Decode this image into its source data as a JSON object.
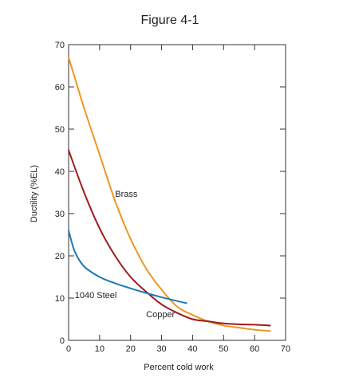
{
  "chart_data": {
    "type": "line",
    "title": "Figure 4-1",
    "xlabel": "Percent cold work",
    "ylabel": "Ductility (%EL)",
    "xlim": [
      0,
      70
    ],
    "ylim": [
      0,
      70
    ],
    "xticks": [
      0,
      10,
      20,
      30,
      40,
      50,
      60,
      70
    ],
    "yticks": [
      0,
      10,
      20,
      30,
      40,
      50,
      60,
      70
    ],
    "grid": false,
    "legend": "none",
    "series": [
      {
        "name": "Brass",
        "color": "#f0961e",
        "label_at": [
          15,
          34
        ],
        "x": [
          0,
          5,
          10,
          15,
          20,
          25,
          30,
          35,
          40,
          45,
          50,
          55,
          60,
          65
        ],
        "y": [
          67,
          55,
          44,
          33,
          24,
          17,
          12,
          8,
          6,
          4.5,
          3.5,
          3,
          2.5,
          2.2
        ]
      },
      {
        "name": "Copper",
        "color": "#a0191c",
        "label_at": [
          25,
          5.5
        ],
        "x": [
          0,
          5,
          10,
          15,
          20,
          25,
          30,
          35,
          40,
          45,
          50,
          55,
          60,
          65
        ],
        "y": [
          45,
          35,
          26.5,
          20,
          15,
          11.5,
          8.5,
          6.5,
          5,
          4.5,
          4,
          3.8,
          3.7,
          3.5
        ]
      },
      {
        "name": "1040 Steel",
        "color": "#1f78b4",
        "label_at": [
          2,
          10
        ],
        "x": [
          0,
          2,
          5,
          10,
          15,
          20,
          25,
          30,
          35,
          38
        ],
        "y": [
          26,
          21,
          17.5,
          15,
          13.5,
          12.3,
          11.2,
          10.2,
          9.3,
          8.8
        ]
      }
    ]
  }
}
